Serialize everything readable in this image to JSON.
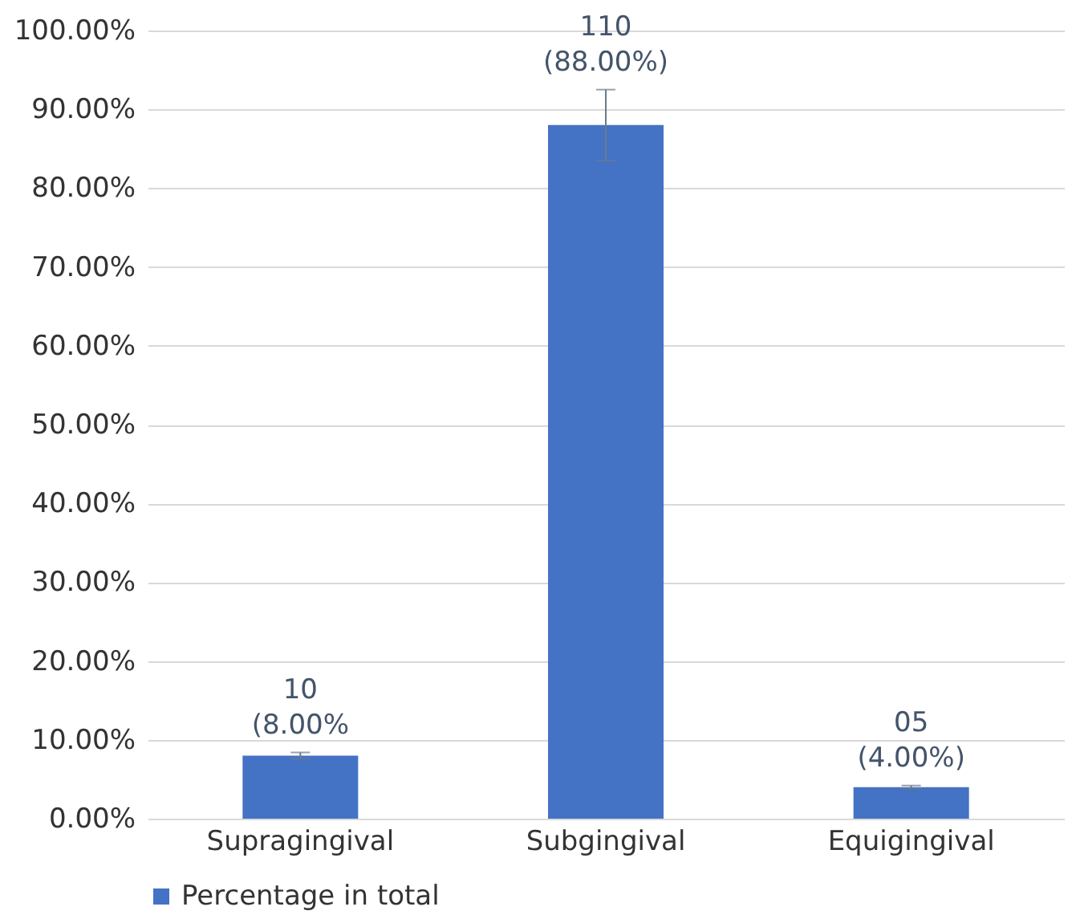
{
  "chart_data": {
    "type": "bar",
    "categories": [
      "Supragingival",
      "Subgingival",
      "Equigingival"
    ],
    "series": [
      {
        "name": "Percentage in total",
        "color": "#4472c4",
        "values": [
          8,
          88,
          4
        ],
        "errors": [
          0.4,
          4.5,
          0.2
        ],
        "value_labels": [
          "10\n(8.00%",
          "110\n(88.00%)",
          "05\n(4.00%)"
        ]
      }
    ],
    "ylim": [
      0,
      100
    ],
    "yticks": [
      {
        "value": 0,
        "label": "0.00%"
      },
      {
        "value": 10,
        "label": "10.00%"
      },
      {
        "value": 20,
        "label": "20.00%"
      },
      {
        "value": 30,
        "label": "30.00%"
      },
      {
        "value": 40,
        "label": "40.00%"
      },
      {
        "value": 50,
        "label": "50.00%"
      },
      {
        "value": 60,
        "label": "60.00%"
      },
      {
        "value": 70,
        "label": "70.00%"
      },
      {
        "value": 80,
        "label": "80.00%"
      },
      {
        "value": 90,
        "label": "90.00%"
      },
      {
        "value": 100,
        "label": "100.00%"
      }
    ],
    "grid": "y",
    "legend": "bottom"
  }
}
